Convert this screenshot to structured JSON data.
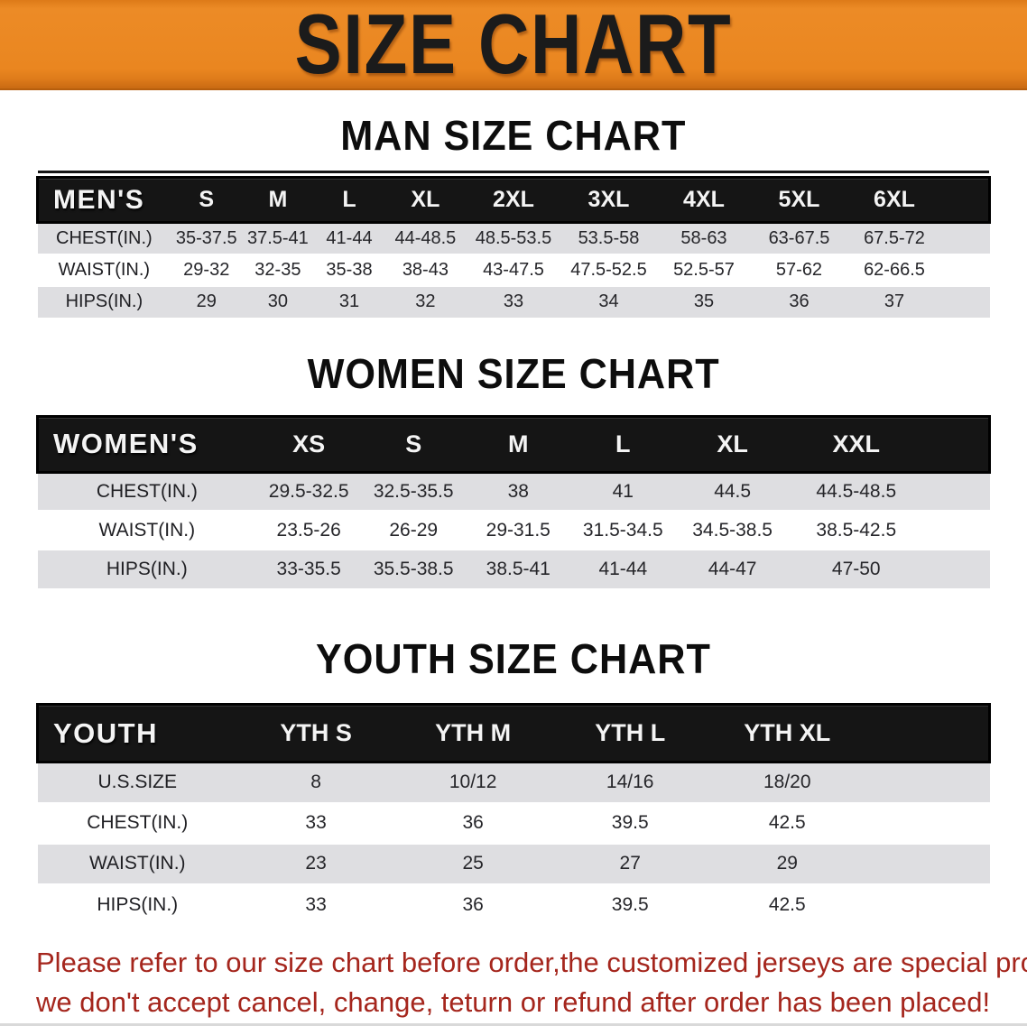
{
  "banner": {
    "title": "SIZE CHART",
    "bg_color": "#EA8621",
    "text_color": "#1B1B1B"
  },
  "sections": [
    {
      "heading": "MAN SIZE CHART",
      "table": {
        "header_label": "MEN'S",
        "columns": [
          "S",
          "M",
          "L",
          "XL",
          "2XL",
          "3XL",
          "4XL",
          "5XL",
          "6XL"
        ],
        "rows": [
          {
            "label": "CHEST(IN.)",
            "values": [
              "35-37.5",
              "37.5-41",
              "41-44",
              "44-48.5",
              "48.5-53.5",
              "53.5-58",
              "58-63",
              "63-67.5",
              "67.5-72"
            ]
          },
          {
            "label": "WAIST(IN.)",
            "values": [
              "29-32",
              "32-35",
              "35-38",
              "38-43",
              "43-47.5",
              "47.5-52.5",
              "52.5-57",
              "57-62",
              "62-66.5"
            ]
          },
          {
            "label": "HIPS(IN.)",
            "values": [
              "29",
              "30",
              "31",
              "32",
              "33",
              "34",
              "35",
              "36",
              "37"
            ]
          }
        ]
      }
    },
    {
      "heading": "WOMEN SIZE CHART",
      "table": {
        "header_label": "WOMEN'S",
        "columns": [
          "XS",
          "S",
          "M",
          "L",
          "XL",
          "XXL"
        ],
        "rows": [
          {
            "label": "CHEST(IN.)",
            "values": [
              "29.5-32.5",
              "32.5-35.5",
              "38",
              "41",
              "44.5",
              "44.5-48.5"
            ]
          },
          {
            "label": "WAIST(IN.)",
            "values": [
              "23.5-26",
              "26-29",
              "29-31.5",
              "31.5-34.5",
              "34.5-38.5",
              "38.5-42.5"
            ]
          },
          {
            "label": "HIPS(IN.)",
            "values": [
              "33-35.5",
              "35.5-38.5",
              "38.5-41",
              "41-44",
              "44-47",
              "47-50"
            ]
          }
        ]
      }
    },
    {
      "heading": "YOUTH SIZE CHART",
      "table": {
        "header_label": "YOUTH",
        "columns": [
          "YTH S",
          "YTH M",
          "YTH L",
          "YTH XL"
        ],
        "rows": [
          {
            "label": "U.S.SIZE",
            "values": [
              "8",
              "10/12",
              "14/16",
              "18/20"
            ]
          },
          {
            "label": "CHEST(IN.)",
            "values": [
              "33",
              "36",
              "39.5",
              "42.5"
            ]
          },
          {
            "label": "WAIST(IN.)",
            "values": [
              "23",
              "25",
              "27",
              "29"
            ]
          },
          {
            "label": "HIPS(IN.)",
            "values": [
              "33",
              "36",
              "39.5",
              "42.5"
            ]
          }
        ]
      }
    }
  ],
  "note": {
    "color": "#A5261D",
    "lines": [
      "Please refer to our size chart before order,the customized jerseys are special products,",
      "we don't accept cancel, change, teturn or refund after order has been placed!"
    ]
  }
}
